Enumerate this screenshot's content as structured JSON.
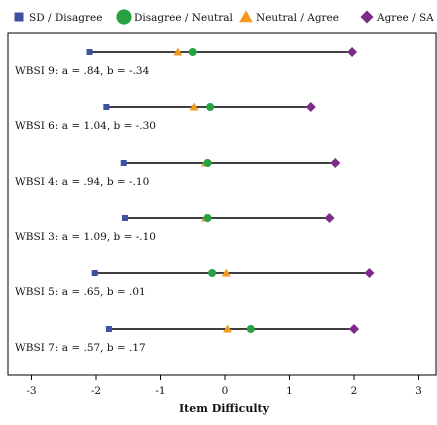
{
  "chart_data": {
    "type": "scatter",
    "xlabel": "Item Difficulty",
    "ylabel": "",
    "xlim": [
      -3.3,
      3.25
    ],
    "xticks": [
      -3,
      -2,
      -1,
      0,
      1,
      2,
      3
    ],
    "grid": false,
    "legend_position": "top",
    "series": [
      {
        "name": "SD / Disagree",
        "marker": "square",
        "color": "#3f51a3"
      },
      {
        "name": "Disagree / Neutral",
        "marker": "circle",
        "color": "#27a242"
      },
      {
        "name": "Neutral / Agree",
        "marker": "triangle",
        "color": "#f39a1e"
      },
      {
        "name": "Agree / SA",
        "marker": "diamond",
        "color": "#7a2c86"
      }
    ],
    "items": [
      {
        "label": "WBSI 9: a = .84, b = -.34",
        "values": [
          -2.1,
          -0.5,
          -0.73,
          1.97
        ]
      },
      {
        "label": "WBSI 6: a = 1.04, b = -.30",
        "values": [
          -1.84,
          -0.23,
          -0.48,
          1.33
        ]
      },
      {
        "label": "WBSI 4: a = .94, b = -.10",
        "values": [
          -1.57,
          -0.27,
          -0.3,
          1.71
        ]
      },
      {
        "label": "WBSI 3: a = 1.09, b = -.10",
        "values": [
          -1.55,
          -0.27,
          -0.3,
          1.62
        ]
      },
      {
        "label": "WBSI 5: a = .65, b = .01",
        "values": [
          -2.02,
          -0.2,
          0.02,
          2.24
        ]
      },
      {
        "label": "WBSI 7: a = .57, b = .17",
        "values": [
          -1.8,
          0.4,
          0.04,
          2.0
        ]
      }
    ]
  }
}
